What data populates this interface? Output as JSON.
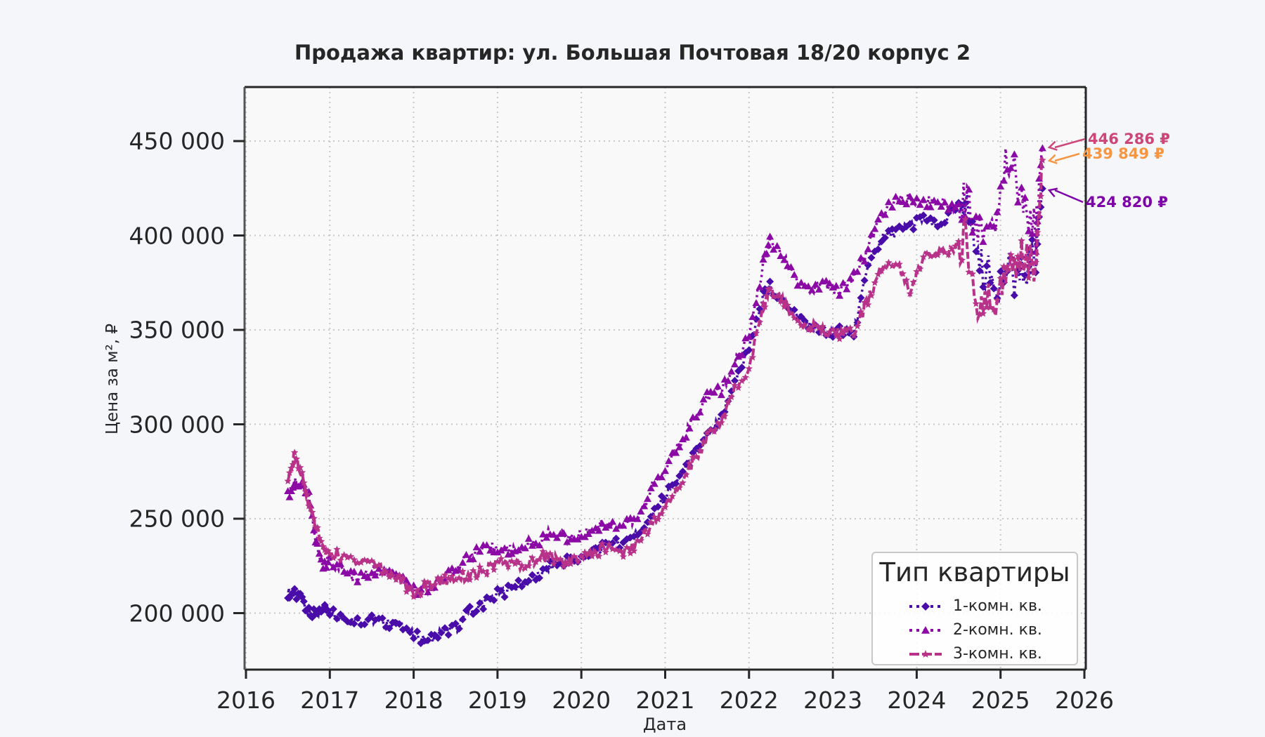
{
  "chart_data": {
    "type": "line",
    "title": "Продажа квартир: ул. Большая Почтовая 18/20 корпус 2",
    "xlabel": "Дата",
    "ylabel": "Цена за м², ₽",
    "xlim": [
      2016,
      2026
    ],
    "ylim": [
      170000,
      478000
    ],
    "x_ticks": [
      "2016",
      "2017",
      "2018",
      "2019",
      "2020",
      "2021",
      "2022",
      "2023",
      "2024",
      "2025",
      "2026"
    ],
    "y_ticks": [
      "200 000",
      "250 000",
      "300 000",
      "350 000",
      "400 000",
      "450 000"
    ],
    "grid": true,
    "legend": {
      "title": "Тип квартиры",
      "position": "lower right"
    },
    "x": [
      2016.5,
      2016.58,
      2016.67,
      2016.75,
      2016.83,
      2016.92,
      2017.0,
      2017.17,
      2017.33,
      2017.5,
      2017.67,
      2017.83,
      2018.0,
      2018.17,
      2018.33,
      2018.5,
      2018.67,
      2018.83,
      2019.0,
      2019.17,
      2019.33,
      2019.5,
      2019.67,
      2019.83,
      2020.0,
      2020.17,
      2020.33,
      2020.5,
      2020.67,
      2020.83,
      2021.0,
      2021.17,
      2021.33,
      2021.5,
      2021.67,
      2021.83,
      2022.0,
      2022.17,
      2022.25,
      2022.42,
      2022.58,
      2022.75,
      2022.92,
      2023.08,
      2023.25,
      2023.42,
      2023.58,
      2023.75,
      2023.92,
      2024.08,
      2024.25,
      2024.42,
      2024.58,
      2024.75,
      2024.92,
      2025.08,
      2025.25,
      2025.42,
      2025.5
    ],
    "series": [
      {
        "name": "1-комн. кв.",
        "color": "#4a0ca8",
        "marker": "diamond",
        "linestyle": "dotted",
        "values": [
          211000,
          210000,
          207000,
          200000,
          199000,
          203000,
          201000,
          198000,
          196000,
          197000,
          194000,
          196000,
          188000,
          186000,
          190000,
          192000,
          201000,
          205000,
          210000,
          213000,
          216000,
          220000,
          226000,
          228000,
          229000,
          233000,
          236000,
          238000,
          242000,
          250000,
          262000,
          273000,
          283000,
          293000,
          303000,
          322000,
          340000,
          368000,
          373000,
          365000,
          358000,
          352000,
          348000,
          350000,
          348000,
          383000,
          398000,
          402000,
          405000,
          409000,
          404000,
          412000,
          418000,
          385000,
          375000,
          380000,
          378000,
          390000,
          424820
        ]
      },
      {
        "name": "2-комн. кв.",
        "color": "#8b0aa5",
        "marker": "triangle",
        "linestyle": "dotted",
        "values": [
          262000,
          270000,
          268000,
          262000,
          238000,
          225000,
          228000,
          222000,
          218000,
          222000,
          222000,
          218000,
          212000,
          213000,
          218000,
          224000,
          231000,
          233000,
          235000,
          233000,
          236000,
          238000,
          244000,
          239000,
          241000,
          246000,
          248000,
          246000,
          250000,
          266000,
          276000,
          290000,
          302000,
          315000,
          318000,
          332000,
          347000,
          385000,
          397000,
          388000,
          374000,
          372000,
          374000,
          371000,
          378000,
          393000,
          412000,
          418000,
          420000,
          418000,
          418000,
          415000,
          420000,
          405000,
          405000,
          445000,
          420000,
          402000,
          446286
        ]
      },
      {
        "name": "3-комн. кв.",
        "color": "#b83289",
        "marker": "star",
        "linestyle": "dashed",
        "values": [
          268000,
          284000,
          272000,
          258000,
          247000,
          233000,
          232000,
          230000,
          228000,
          228000,
          222000,
          218000,
          210000,
          215000,
          217000,
          219000,
          220000,
          222000,
          226000,
          227000,
          225000,
          230000,
          229000,
          226000,
          230000,
          232000,
          236000,
          232000,
          237000,
          246000,
          256000,
          268000,
          280000,
          293000,
          302000,
          318000,
          330000,
          362000,
          372000,
          364000,
          355000,
          352000,
          348000,
          348000,
          348000,
          366000,
          383000,
          386000,
          372000,
          388000,
          390000,
          392000,
          398000,
          362000,
          366000,
          378000,
          392000,
          385000,
          439849
        ]
      }
    ],
    "annotations": [
      {
        "text": "446 286 ₽",
        "color": "#cc4778",
        "value": 446286
      },
      {
        "text": "439 849 ₽",
        "color": "#f89540",
        "value": 439849
      },
      {
        "text": "424 820 ₽",
        "color": "#7e03a8",
        "value": 424820
      }
    ]
  }
}
